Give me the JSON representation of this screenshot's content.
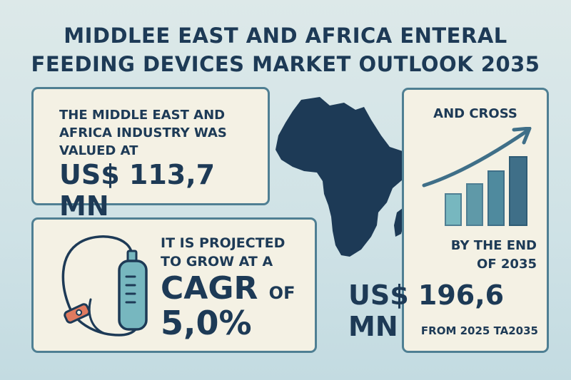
{
  "title": {
    "line1": "MIDDLEE EAST AND AFRICA ENTERAL",
    "line2": "FEEDING DEVICES MARKET OUTLOOK 2035"
  },
  "card_valued": {
    "line1": "THE MIDDLE EAST AND",
    "line2": "AFRICA INDUSTRY WAS",
    "line3": "VALUED AT",
    "value": "US$ 113,7 MN"
  },
  "card_cagr": {
    "line1": "IT IS PROJECTED",
    "line2": "TO GROW AT A",
    "cagr": "CAGR",
    "of": "OF",
    "rate": "5,0%",
    "icon": "feeding-bag-icon"
  },
  "card_outlook": {
    "top": "AND CROSS",
    "end_line1": "BY THE END",
    "end_line2": "OF 2035",
    "value": "US$ 196,6 MN",
    "from": "FROM 2025 TA2035",
    "icon": "growth-chart-icon"
  },
  "map": {
    "icon": "africa-map-icon"
  },
  "colors": {
    "navy": "#1d3a56",
    "teal": "#4f7f93",
    "card": "#f4f1e4",
    "bar_light": "#77b7bf",
    "bar_dark": "#3f6f88",
    "accent": "#e07a5f"
  }
}
